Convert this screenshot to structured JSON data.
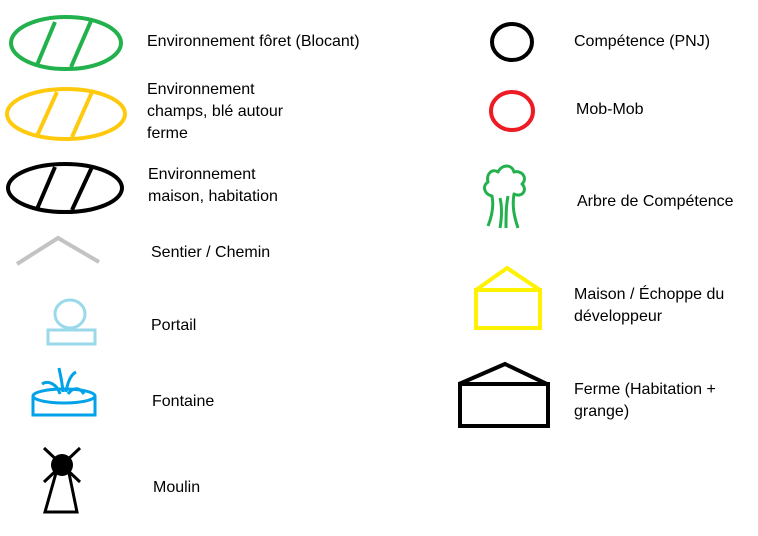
{
  "legend": {
    "items": [
      {
        "id": "foret",
        "label": "Environnement fôret (Blocant)",
        "icon": "green-hatched-ellipse-icon",
        "color": "#22b14c"
      },
      {
        "id": "champs",
        "label_lines": [
          "Environnement",
          "champs, blé autour",
          "ferme"
        ],
        "icon": "yellow-hatched-ellipse-icon",
        "color": "#ffc90e"
      },
      {
        "id": "maison",
        "label_lines": [
          "Environnement",
          "maison, habitation"
        ],
        "icon": "black-hatched-ellipse-icon",
        "color": "#000000"
      },
      {
        "id": "sentier",
        "label": "Sentier / Chemin",
        "icon": "grey-path-chevron-icon",
        "color": "#c3c3c3"
      },
      {
        "id": "portail",
        "label": "Portail",
        "icon": "portal-icon",
        "color": "#99d9ea"
      },
      {
        "id": "fontaine",
        "label": "Fontaine",
        "icon": "fountain-icon",
        "color": "#00a2e8"
      },
      {
        "id": "moulin",
        "label": "Moulin",
        "icon": "windmill-icon",
        "color": "#000000"
      },
      {
        "id": "pnj",
        "label": "Compétence (PNJ)",
        "icon": "black-circle-icon",
        "color": "#000000"
      },
      {
        "id": "mob",
        "label": "Mob-Mob",
        "icon": "red-circle-icon",
        "color": "#ed1c24"
      },
      {
        "id": "arbre",
        "label": "Arbre de Compétence",
        "icon": "skill-tree-icon",
        "color": "#22b14c"
      },
      {
        "id": "echoppe",
        "label_lines": [
          "Maison / Échoppe du",
          "développeur"
        ],
        "icon": "yellow-house-icon",
        "color": "#fff200"
      },
      {
        "id": "ferme",
        "label_lines": [
          "Ferme (Habitation +",
          "grange)"
        ],
        "icon": "black-barn-icon",
        "color": "#000000"
      }
    ]
  }
}
